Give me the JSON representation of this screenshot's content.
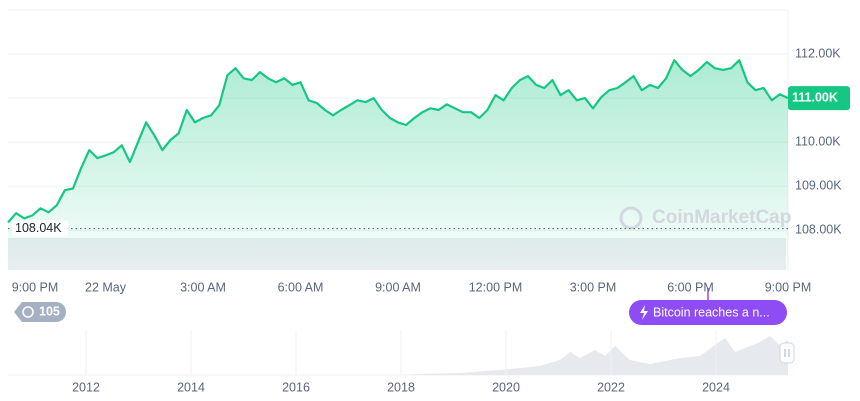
{
  "chart_data": {
    "type": "line",
    "color": "#16c784",
    "categories": [
      "9:00 PM",
      null,
      null,
      null,
      null,
      null,
      null,
      null,
      null,
      null,
      null,
      null,
      "22 May",
      null,
      null,
      null,
      null,
      null,
      null,
      null,
      null,
      null,
      null,
      null,
      "3:00 AM",
      null,
      null,
      null,
      null,
      null,
      null,
      null,
      null,
      null,
      null,
      null,
      "6:00 AM",
      null,
      null,
      null,
      null,
      null,
      null,
      null,
      null,
      null,
      null,
      null,
      "9:00 AM",
      null,
      null,
      null,
      null,
      null,
      null,
      null,
      null,
      null,
      null,
      null,
      "12:00 PM",
      null,
      null,
      null,
      null,
      null,
      null,
      null,
      null,
      null,
      null,
      null,
      "3:00 PM",
      null,
      null,
      null,
      null,
      null,
      null,
      null,
      null,
      null,
      null,
      null,
      "6:00 PM",
      null,
      null,
      null,
      null,
      null,
      null,
      null,
      null,
      null,
      null,
      null,
      "9:00 PM"
    ],
    "values": [
      108180,
      108390,
      108270,
      108340,
      108500,
      108410,
      108570,
      108910,
      108950,
      109410,
      109820,
      109640,
      109700,
      109770,
      109930,
      109550,
      110000,
      110450,
      110160,
      109820,
      110050,
      110200,
      110730,
      110450,
      110550,
      110610,
      110840,
      111520,
      111680,
      111450,
      111410,
      111590,
      111450,
      111360,
      111450,
      111300,
      111360,
      110950,
      110890,
      110730,
      110610,
      110730,
      110840,
      110950,
      110910,
      111000,
      110730,
      110550,
      110450,
      110390,
      110550,
      110680,
      110770,
      110730,
      110860,
      110770,
      110680,
      110680,
      110550,
      110730,
      111070,
      110950,
      111230,
      111410,
      111500,
      111300,
      111230,
      111410,
      111070,
      111180,
      110950,
      111000,
      110770,
      111020,
      111180,
      111230,
      111360,
      111500,
      111180,
      111300,
      111230,
      111450,
      111860,
      111640,
      111500,
      111640,
      111820,
      111680,
      111640,
      111680,
      111860,
      111360,
      111180,
      111230,
      110950,
      111090,
      111000
    ],
    "ylim": [
      107100,
      113000
    ],
    "yticks": [
      {
        "value": 108000,
        "label": "108.00K"
      },
      {
        "value": 109000,
        "label": "109.00K"
      },
      {
        "value": 110000,
        "label": "110.00K"
      },
      {
        "value": 111000,
        "label": "111.00K"
      },
      {
        "value": 112000,
        "label": "112.00K"
      }
    ],
    "grid": true,
    "open_price": {
      "value": 108040,
      "label": "108.04K"
    },
    "current_price": {
      "value": 111000,
      "label": "111.00K"
    },
    "watermark": "CoinMarketCap"
  },
  "controls": {
    "history_count": "105",
    "event_label": "Bitcoin reaches a n..."
  },
  "navigator": {
    "years": [
      2012,
      2014,
      2016,
      2018,
      2020,
      2022,
      2024
    ]
  }
}
